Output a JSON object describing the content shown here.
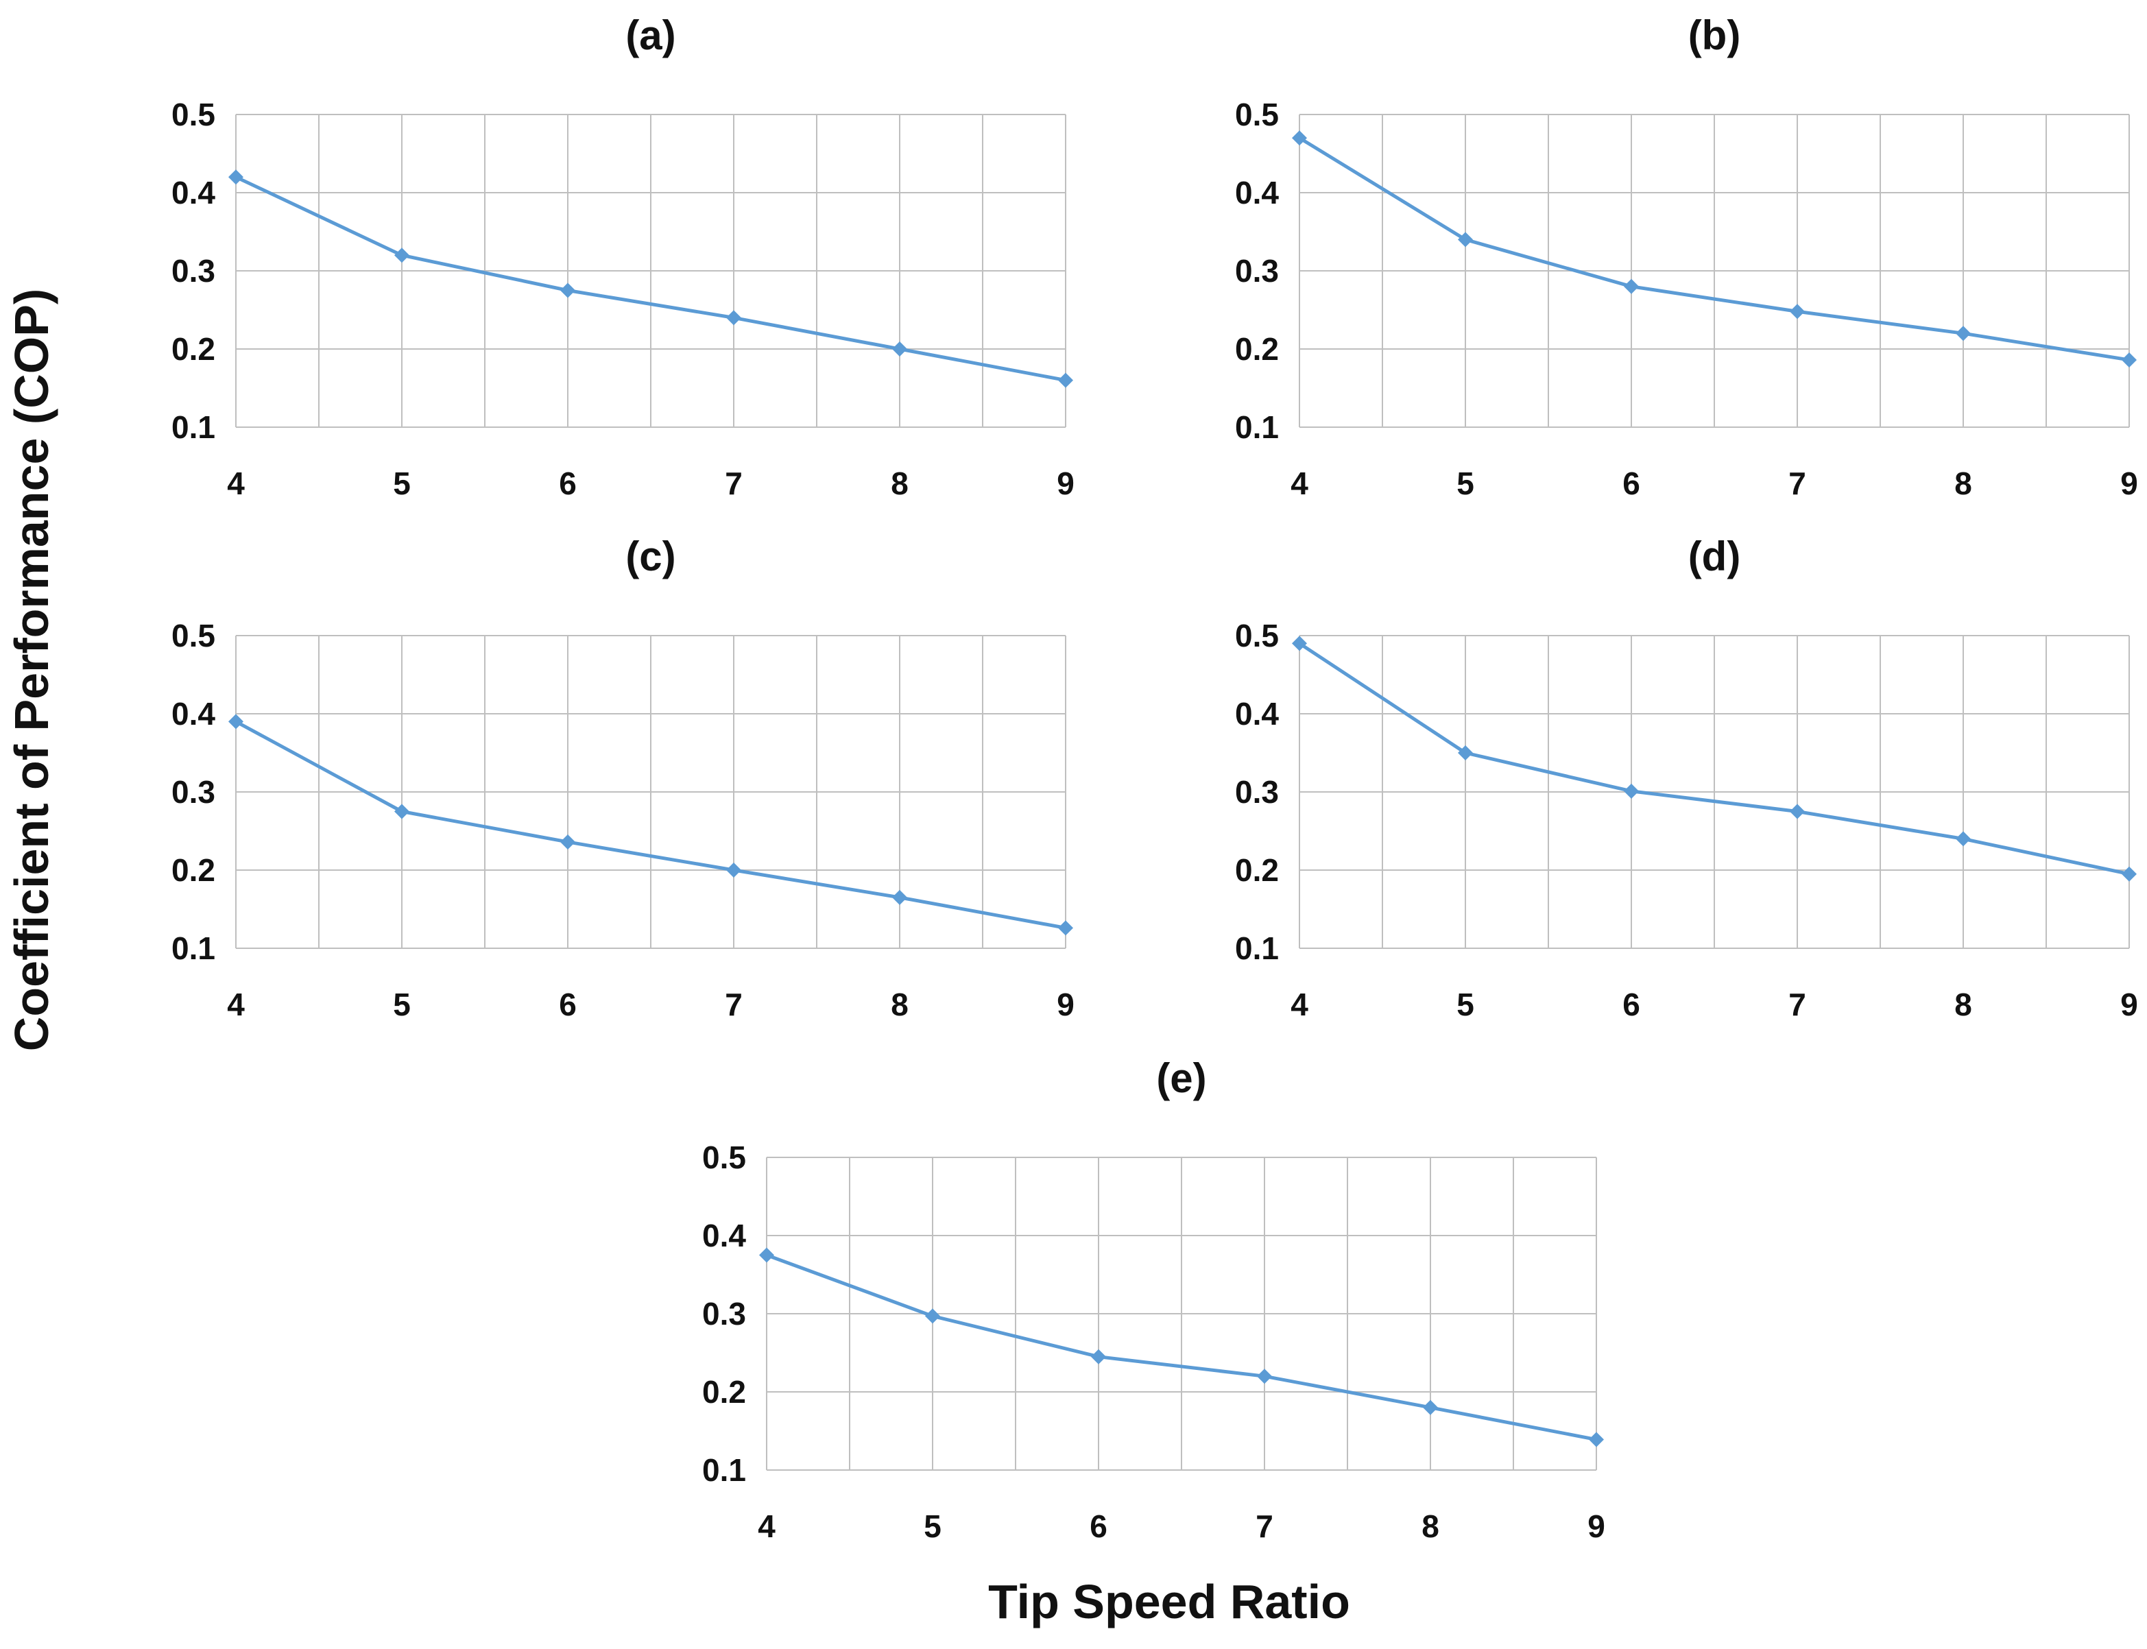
{
  "figure": {
    "ylabel": "Coefficient of Performance (COP)",
    "xlabel": "Tip Speed Ratio"
  },
  "colors": {
    "series": "#5B9BD5",
    "grid": "#BFBFBF",
    "text": "#111111"
  },
  "chart_data": [
    {
      "type": "line",
      "title": "(a)",
      "x": [
        4,
        5,
        6,
        7,
        8,
        9
      ],
      "values": [
        0.42,
        0.32,
        0.275,
        0.24,
        0.2,
        0.16
      ],
      "xlim": [
        4,
        9
      ],
      "ylim": [
        0.1,
        0.5
      ],
      "xticks": [
        "4",
        "5",
        "6",
        "7",
        "8",
        "9"
      ],
      "yticks": [
        "0.1",
        "0.2",
        "0.3",
        "0.4",
        "0.5"
      ],
      "grid": true
    },
    {
      "type": "line",
      "title": "(b)",
      "x": [
        4,
        5,
        6,
        7,
        8,
        9
      ],
      "values": [
        0.47,
        0.34,
        0.28,
        0.248,
        0.22,
        0.186
      ],
      "xlim": [
        4,
        9
      ],
      "ylim": [
        0.1,
        0.5
      ],
      "xticks": [
        "4",
        "5",
        "6",
        "7",
        "8",
        "9"
      ],
      "yticks": [
        "0.1",
        "0.2",
        "0.3",
        "0.4",
        "0.5"
      ],
      "grid": true
    },
    {
      "type": "line",
      "title": "(c)",
      "x": [
        4,
        5,
        6,
        7,
        8,
        9
      ],
      "values": [
        0.39,
        0.275,
        0.236,
        0.2,
        0.165,
        0.126
      ],
      "xlim": [
        4,
        9
      ],
      "ylim": [
        0.1,
        0.5
      ],
      "xticks": [
        "4",
        "5",
        "6",
        "7",
        "8",
        "9"
      ],
      "yticks": [
        "0.1",
        "0.2",
        "0.3",
        "0.4",
        "0.5"
      ],
      "grid": true
    },
    {
      "type": "line",
      "title": "(d)",
      "x": [
        4,
        5,
        6,
        7,
        8,
        9
      ],
      "values": [
        0.49,
        0.35,
        0.301,
        0.275,
        0.24,
        0.195
      ],
      "xlim": [
        4,
        9
      ],
      "ylim": [
        0.1,
        0.5
      ],
      "xticks": [
        "4",
        "5",
        "6",
        "7",
        "8",
        "9"
      ],
      "yticks": [
        "0.1",
        "0.2",
        "0.3",
        "0.4",
        "0.5"
      ],
      "grid": true
    },
    {
      "type": "line",
      "title": "(e)",
      "x": [
        4,
        5,
        6,
        7,
        8,
        9
      ],
      "values": [
        0.375,
        0.297,
        0.245,
        0.22,
        0.18,
        0.139
      ],
      "xlim": [
        4,
        9
      ],
      "ylim": [
        0.1,
        0.5
      ],
      "xticks": [
        "4",
        "5",
        "6",
        "7",
        "8",
        "9"
      ],
      "yticks": [
        "0.1",
        "0.2",
        "0.3",
        "0.4",
        "0.5"
      ],
      "grid": true
    }
  ]
}
